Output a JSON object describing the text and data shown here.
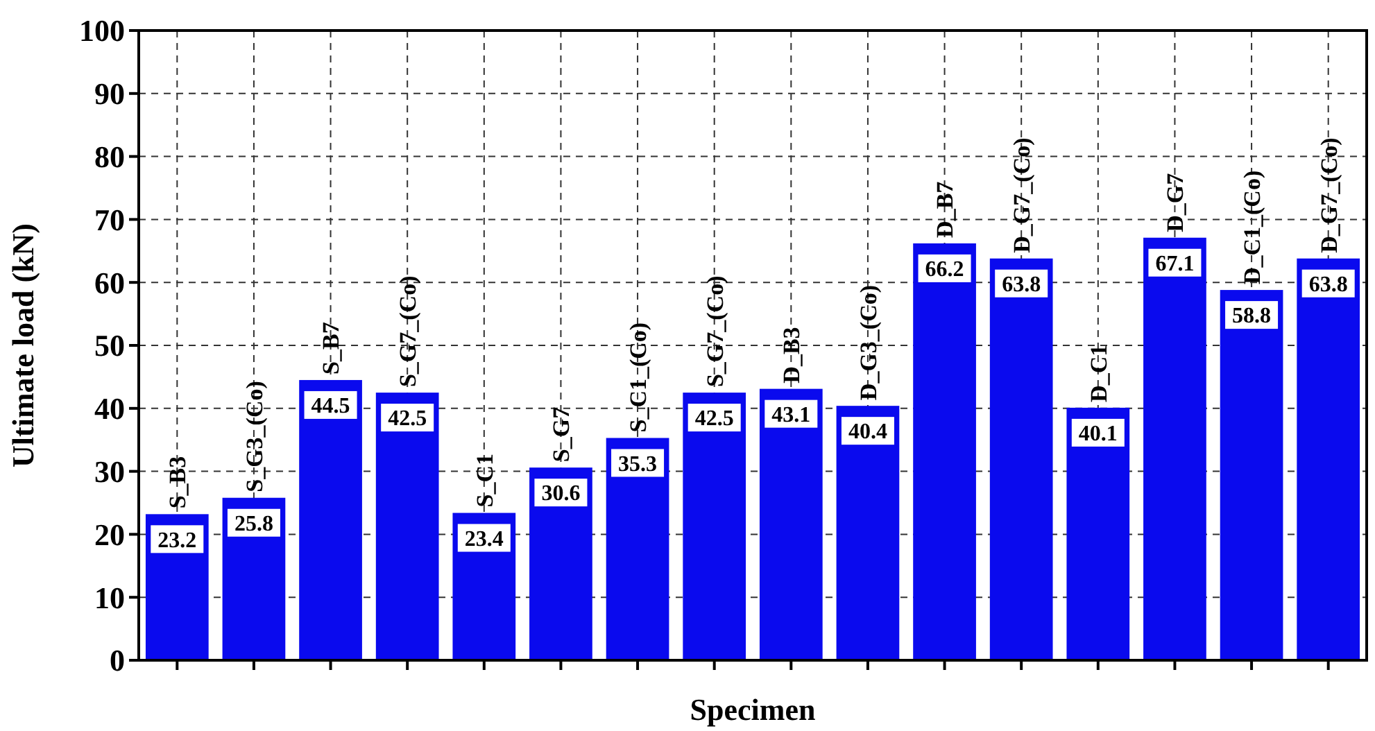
{
  "chart_data": {
    "type": "bar",
    "xlabel": "Specimen",
    "ylabel": "Ultimate load (kN)",
    "categories": [
      "S_B3",
      "S_G3_(Co)",
      "S_B7",
      "S_G7_(Co)",
      "S_C1",
      "S_G7",
      "S_C1_(Co)",
      "S_G7_(Co)",
      "D_B3",
      "D_G3_(Co)",
      "D_B7",
      "D_G7_(Co)",
      "D_C1",
      "D_G7",
      "D_C1_(Co)",
      "D_G7_(Co)"
    ],
    "values": [
      23.2,
      25.8,
      44.5,
      42.5,
      23.4,
      30.6,
      35.3,
      42.5,
      43.1,
      40.4,
      66.2,
      63.8,
      40.1,
      67.1,
      58.8,
      63.8
    ],
    "color": "#0a0aee",
    "ylim": [
      0,
      100
    ],
    "yticks": [
      0,
      10,
      20,
      30,
      40,
      50,
      60,
      70,
      80,
      90,
      100
    ],
    "grid": true,
    "data_labels": true
  }
}
